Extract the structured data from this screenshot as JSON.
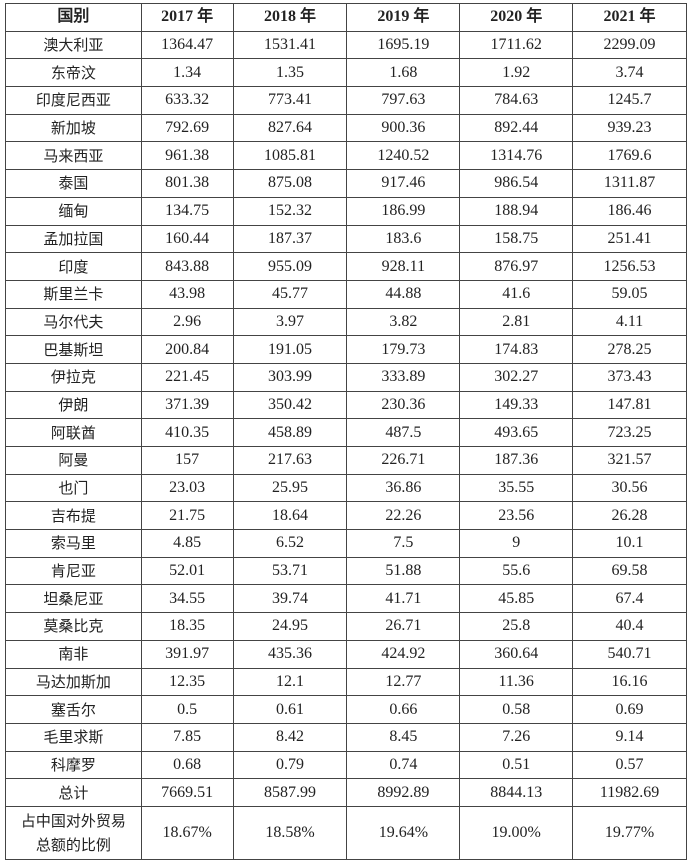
{
  "table": {
    "headers": [
      "国别",
      "2017 年",
      "2018 年",
      "2019 年",
      "2020 年",
      "2021 年"
    ],
    "rows": [
      [
        "澳大利亚",
        "1364.47",
        "1531.41",
        "1695.19",
        "1711.62",
        "2299.09"
      ],
      [
        "东帝汶",
        "1.34",
        "1.35",
        "1.68",
        "1.92",
        "3.74"
      ],
      [
        "印度尼西亚",
        "633.32",
        "773.41",
        "797.63",
        "784.63",
        "1245.7"
      ],
      [
        "新加坡",
        "792.69",
        "827.64",
        "900.36",
        "892.44",
        "939.23"
      ],
      [
        "马来西亚",
        "961.38",
        "1085.81",
        "1240.52",
        "1314.76",
        "1769.6"
      ],
      [
        "泰国",
        "801.38",
        "875.08",
        "917.46",
        "986.54",
        "1311.87"
      ],
      [
        "缅甸",
        "134.75",
        "152.32",
        "186.99",
        "188.94",
        "186.46"
      ],
      [
        "孟加拉国",
        "160.44",
        "187.37",
        "183.6",
        "158.75",
        "251.41"
      ],
      [
        "印度",
        "843.88",
        "955.09",
        "928.11",
        "876.97",
        "1256.53"
      ],
      [
        "斯里兰卡",
        "43.98",
        "45.77",
        "44.88",
        "41.6",
        "59.05"
      ],
      [
        "马尔代夫",
        "2.96",
        "3.97",
        "3.82",
        "2.81",
        "4.11"
      ],
      [
        "巴基斯坦",
        "200.84",
        "191.05",
        "179.73",
        "174.83",
        "278.25"
      ],
      [
        "伊拉克",
        "221.45",
        "303.99",
        "333.89",
        "302.27",
        "373.43"
      ],
      [
        "伊朗",
        "371.39",
        "350.42",
        "230.36",
        "149.33",
        "147.81"
      ],
      [
        "阿联酋",
        "410.35",
        "458.89",
        "487.5",
        "493.65",
        "723.25"
      ],
      [
        "阿曼",
        "157",
        "217.63",
        "226.71",
        "187.36",
        "321.57"
      ],
      [
        "也门",
        "23.03",
        "25.95",
        "36.86",
        "35.55",
        "30.56"
      ],
      [
        "吉布提",
        "21.75",
        "18.64",
        "22.26",
        "23.56",
        "26.28"
      ],
      [
        "索马里",
        "4.85",
        "6.52",
        "7.5",
        "9",
        "10.1"
      ],
      [
        "肯尼亚",
        "52.01",
        "53.71",
        "51.88",
        "55.6",
        "69.58"
      ],
      [
        "坦桑尼亚",
        "34.55",
        "39.74",
        "41.71",
        "45.85",
        "67.4"
      ],
      [
        "莫桑比克",
        "18.35",
        "24.95",
        "26.71",
        "25.8",
        "40.4"
      ],
      [
        "南非",
        "391.97",
        "435.36",
        "424.92",
        "360.64",
        "540.71"
      ],
      [
        "马达加斯加",
        "12.35",
        "12.1",
        "12.77",
        "11.36",
        "16.16"
      ],
      [
        "塞舌尔",
        "0.5",
        "0.61",
        "0.66",
        "0.58",
        "0.69"
      ],
      [
        "毛里求斯",
        "7.85",
        "8.42",
        "8.45",
        "7.26",
        "9.14"
      ],
      [
        "科摩罗",
        "0.68",
        "0.79",
        "0.74",
        "0.51",
        "0.57"
      ],
      [
        "总计",
        "7669.51",
        "8587.99",
        "8992.89",
        "8844.13",
        "11982.69"
      ]
    ],
    "ratio_row": [
      "占中国对外贸易总额的比例",
      "18.67%",
      "18.58%",
      "19.64%",
      "19.00%",
      "19.77%"
    ]
  }
}
